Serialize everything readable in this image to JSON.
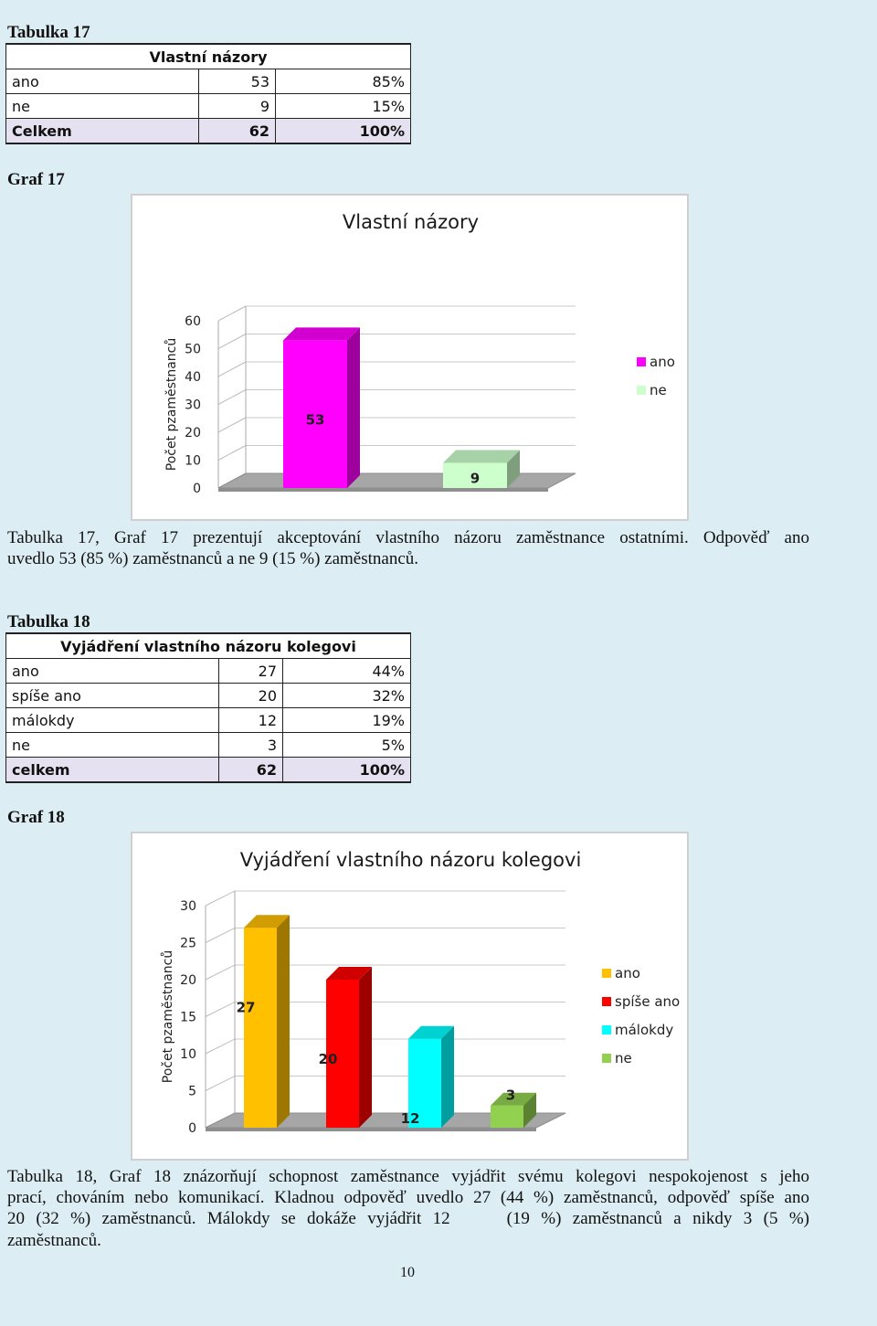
{
  "table17": {
    "caption": "Tabulka 17",
    "header": "Vlastní názory",
    "rows": [
      {
        "label": "ano",
        "count": "53",
        "pct": "85%"
      },
      {
        "label": "ne",
        "count": "9",
        "pct": "15%"
      }
    ],
    "total": {
      "label": "Celkem",
      "count": "62",
      "pct": "100%"
    }
  },
  "graph17_caption": "Graf 17",
  "chart_data": [
    {
      "type": "bar",
      "title": "Vlastní názory",
      "ylabel": "Počet pzaměstnanců",
      "xlabel": "",
      "categories": [
        "ano",
        "ne"
      ],
      "values": [
        53,
        9
      ],
      "ylim": [
        0,
        60
      ],
      "yticks": [
        0,
        10,
        20,
        30,
        40,
        50,
        60
      ],
      "colors": [
        "#ff00ff",
        "#ccffcc"
      ],
      "data_labels": [
        "53",
        "9"
      ],
      "legend": [
        "ano",
        "ne"
      ],
      "legend_position": "right",
      "grid": true,
      "style": "3d"
    },
    {
      "type": "bar",
      "title": "Vyjádření vlastního názoru kolegovi",
      "ylabel": "Počet pzaměstnanců",
      "xlabel": "",
      "categories": [
        "ano",
        "spíše ano",
        "málokdy",
        "ne"
      ],
      "values": [
        27,
        20,
        12,
        3
      ],
      "ylim": [
        0,
        30
      ],
      "yticks": [
        0,
        5,
        10,
        15,
        20,
        25,
        30
      ],
      "colors": [
        "#ffc000",
        "#ff0000",
        "#00ffff",
        "#92d050"
      ],
      "data_labels": [
        "27",
        "20",
        "12",
        "3"
      ],
      "legend": [
        "ano",
        "spíše ano",
        "málokdy",
        "ne"
      ],
      "legend_position": "right",
      "grid": true,
      "style": "3d"
    }
  ],
  "para17_line1": "Tabulka 17, Graf 17 prezentují akceptování vlastního názoru zaměstnance ostatními.  Odpověď ano",
  "para17_line2": "uvedlo 53 (85 %) zaměstnanců a ne 9 (15 %) zaměstnanců.",
  "table18": {
    "caption": "Tabulka 18",
    "header": "Vyjádření vlastního názoru kolegovi",
    "rows": [
      {
        "label": "ano",
        "count": "27",
        "pct": "44%"
      },
      {
        "label": "spíše ano",
        "count": "20",
        "pct": "32%"
      },
      {
        "label": "málokdy",
        "count": "12",
        "pct": "19%"
      },
      {
        "label": "ne",
        "count": "3",
        "pct": "5%"
      }
    ],
    "total": {
      "label": "celkem",
      "count": "62",
      "pct": "100%"
    }
  },
  "graph18_caption": "Graf 18",
  "para18": [
    "Tabulka 18, Graf 18 znázorňují schopnost zaměstnance vyjádřit svému kolegovi nespokojenost s jeho",
    "prací, chováním nebo komunikací. Kladnou odpověď uvedlo 27 (44 %) zaměstnanců, odpověď spíše ano",
    "20 (32 %) zaměstnanců. Málokdy se dokáže vyjádřit 12     (19 %) zaměstnanců a nikdy 3 (5 %)",
    "zaměstnanců."
  ],
  "page_number": "10"
}
